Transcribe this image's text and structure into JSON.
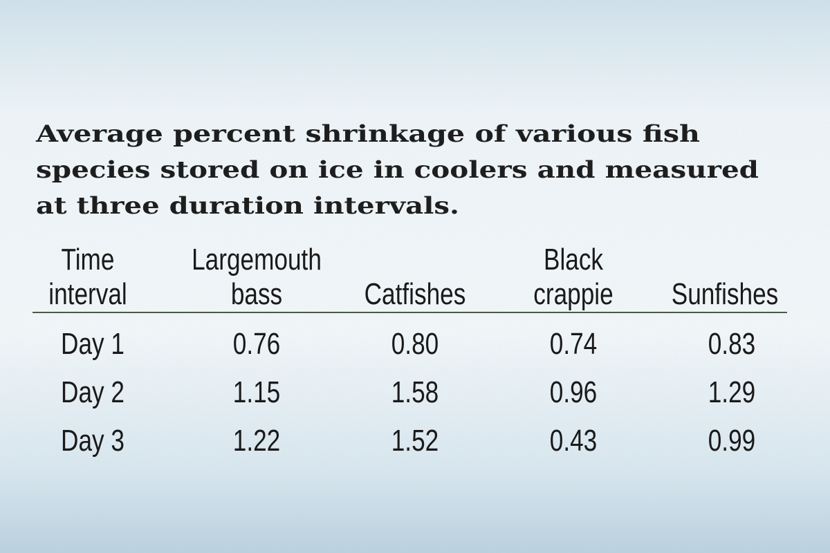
{
  "title": [
    "Average percent shrinkage of various fish",
    "species stored on ice in coolers and measured",
    "at three duration intervals."
  ],
  "table": {
    "header": [
      [
        "Time",
        "interval"
      ],
      [
        "Largemouth",
        "bass"
      ],
      [
        "Catfishes"
      ],
      [
        "Black",
        "crappie"
      ],
      [
        "Sunfishes"
      ]
    ],
    "rows": [
      [
        "Day 1",
        "0.76",
        "0.80",
        "0.74",
        "0.83"
      ],
      [
        "Day 2",
        "1.15",
        "1.58",
        "0.96",
        "1.29"
      ],
      [
        "Day 3",
        "1.22",
        "1.52",
        "0.43",
        "0.99"
      ]
    ]
  }
}
